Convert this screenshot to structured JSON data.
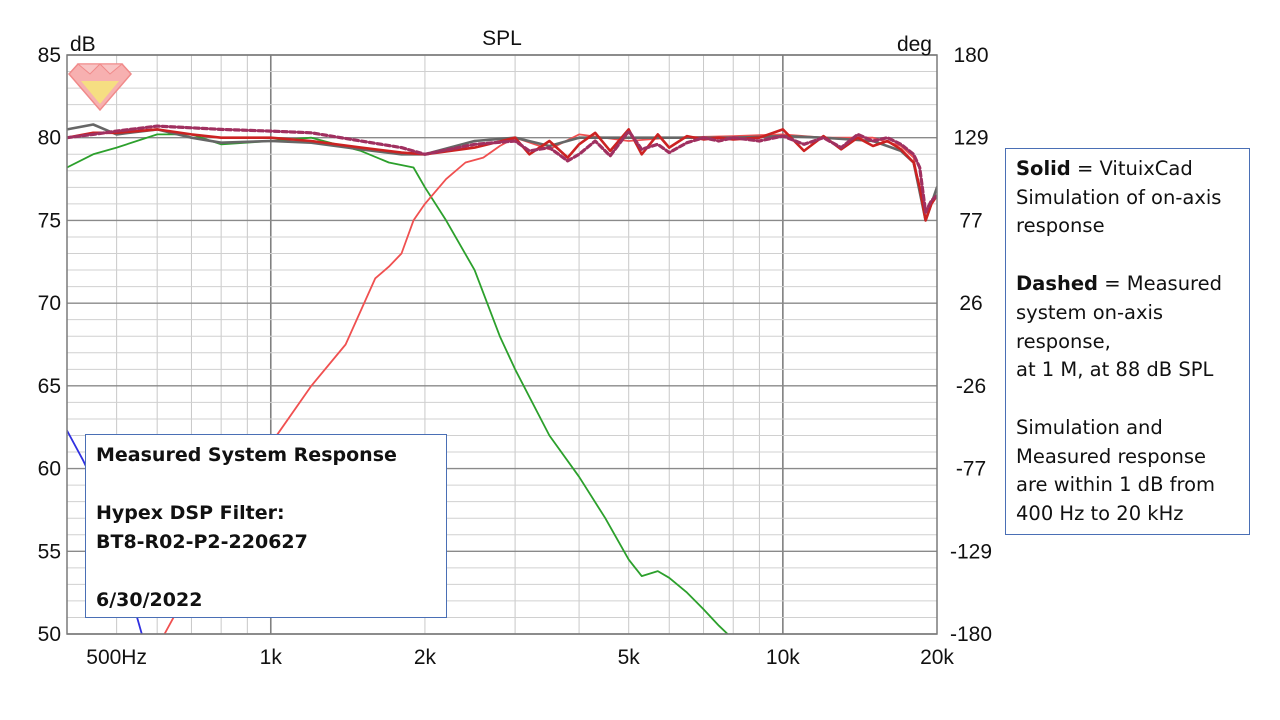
{
  "chart_data": {
    "type": "line",
    "title": "SPL",
    "ylabel_left": "dB",
    "ylabel_right": "deg",
    "x_scale": "log",
    "xlim": [
      400,
      20000
    ],
    "ylim": [
      50,
      85
    ],
    "y2lim": [
      -180,
      180
    ],
    "x_ticks": [
      {
        "value": 500,
        "label": "500Hz"
      },
      {
        "value": 1000,
        "label": "1k"
      },
      {
        "value": 2000,
        "label": "2k"
      },
      {
        "value": 5000,
        "label": "5k"
      },
      {
        "value": 10000,
        "label": "10k"
      },
      {
        "value": 20000,
        "label": "20k"
      }
    ],
    "y_ticks": [
      "85",
      "80",
      "75",
      "70",
      "65",
      "60",
      "55",
      "50"
    ],
    "y2_ticks": [
      "180",
      "129",
      "77",
      "26",
      "-26",
      "-77",
      "-129",
      "-180"
    ],
    "grid": true,
    "series": [
      {
        "color": "#2ca02c",
        "style": "solid",
        "x": [
          400,
          450,
          500,
          600,
          700,
          800,
          1000,
          1200,
          1500,
          1700,
          1900,
          2000,
          2200,
          2500,
          2800,
          3000,
          3500,
          4000,
          4500,
          5000,
          5300,
          5700,
          6000,
          6500,
          7000,
          7500,
          7800
        ],
        "y": [
          78.2,
          79.0,
          79.4,
          80.2,
          80.2,
          79.6,
          79.8,
          80.0,
          79.2,
          78.5,
          78.2,
          77.0,
          75.0,
          72.0,
          68.0,
          66.0,
          62.0,
          59.5,
          57.0,
          54.5,
          53.5,
          53.8,
          53.4,
          52.5,
          51.5,
          50.5,
          50.0
        ]
      },
      {
        "color": "#f05050",
        "style": "solid",
        "x": [
          620,
          700,
          800,
          900,
          1000,
          1200,
          1400,
          1600,
          1700,
          1800,
          1900,
          2000,
          2200,
          2400,
          2600,
          2800,
          3000,
          3500,
          4000,
          5000,
          6000,
          8000,
          10000,
          12000,
          15000,
          17000,
          18000,
          19000,
          20000
        ],
        "y": [
          50.0,
          53.0,
          56.0,
          59.0,
          61.5,
          65.0,
          67.5,
          71.5,
          72.2,
          73.0,
          75.0,
          76.0,
          77.5,
          78.5,
          78.8,
          79.5,
          80.0,
          79.3,
          80.2,
          79.8,
          80.0,
          80.1,
          80.2,
          80.0,
          80.0,
          79.5,
          78.8,
          75.0,
          77.0
        ]
      },
      {
        "color": "#3030e0",
        "style": "solid",
        "x": [
          400,
          430,
          470,
          520,
          560
        ],
        "y": [
          62.3,
          60.5,
          58.0,
          53.5,
          50.0
        ]
      },
      {
        "color": "#666666",
        "style": "solid",
        "x": [
          400,
          450,
          500,
          600,
          700,
          800,
          1000,
          1200,
          1500,
          1800,
          2000,
          2500,
          3000,
          3500,
          4000,
          5000,
          6000,
          8000,
          10000,
          12000,
          15000,
          17000,
          18000,
          19000,
          20000
        ],
        "y": [
          80.5,
          80.8,
          80.2,
          80.5,
          80.0,
          79.7,
          79.8,
          79.7,
          79.3,
          79.0,
          79.0,
          79.8,
          80.0,
          79.5,
          80.0,
          80.0,
          80.0,
          80.0,
          80.1,
          80.0,
          79.8,
          79.2,
          78.5,
          75.0,
          77.0
        ]
      },
      {
        "color": "#cc2222",
        "style": "solid",
        "x": [
          400,
          450,
          500,
          600,
          700,
          800,
          1000,
          1200,
          1500,
          1800,
          2000,
          2500,
          3000,
          3200,
          3500,
          3800,
          4000,
          4300,
          4600,
          5000,
          5300,
          5700,
          6000,
          6500,
          7000,
          7500,
          8000,
          9000,
          10000,
          11000,
          12000,
          13000,
          14000,
          15000,
          16000,
          17000,
          18000,
          18500,
          19000,
          19500,
          20000
        ],
        "y": [
          80.0,
          80.3,
          80.3,
          80.5,
          80.2,
          80.0,
          80.0,
          79.8,
          79.4,
          79.1,
          79.0,
          79.4,
          80.0,
          79.0,
          79.8,
          78.8,
          79.6,
          80.3,
          79.2,
          80.5,
          79.0,
          80.2,
          79.4,
          80.1,
          79.9,
          80.0,
          79.9,
          80.0,
          80.5,
          79.2,
          80.1,
          79.3,
          80.0,
          79.5,
          79.8,
          79.3,
          78.5,
          77.0,
          75.0,
          76.0,
          76.5
        ]
      },
      {
        "color": "#a03060",
        "style": "dashed",
        "x": [
          400,
          450,
          500,
          600,
          700,
          800,
          1000,
          1200,
          1500,
          1800,
          2000,
          2500,
          3000,
          3200,
          3500,
          3800,
          4000,
          4300,
          4600,
          5000,
          5300,
          5700,
          6000,
          6500,
          7000,
          7500,
          8000,
          9000,
          10000,
          11000,
          12000,
          13000,
          14000,
          15000,
          16000,
          17000,
          18000,
          18500,
          19000,
          19500,
          20000
        ],
        "y": [
          80.0,
          80.2,
          80.4,
          80.7,
          80.6,
          80.5,
          80.4,
          80.3,
          79.8,
          79.4,
          79.0,
          79.6,
          79.8,
          79.2,
          79.4,
          78.6,
          79.0,
          79.8,
          78.9,
          80.4,
          79.3,
          79.6,
          79.1,
          79.7,
          80.0,
          79.8,
          80.0,
          79.8,
          80.1,
          79.6,
          80.0,
          79.4,
          80.2,
          79.8,
          80.0,
          79.6,
          79.0,
          78.2,
          75.5,
          76.2,
          76.5
        ]
      }
    ]
  },
  "notes": {
    "left_box": {
      "line1": "Measured System Response",
      "line2": "Hypex DSP Filter:",
      "line3": "BT8-R02-P2-220627",
      "line4": "6/30/2022"
    },
    "right_box": {
      "solid_word": "Solid",
      "solid_text_1": " = VituixCad",
      "solid_text_2": "Simulation of on-axis",
      "solid_text_3": "response",
      "dashed_word": "Dashed",
      "dashed_text_1": " = Measured",
      "dashed_text_2": "system on-axis",
      "dashed_text_3": "response,",
      "dashed_text_4": "at 1 M, at 88 dB SPL",
      "summary_1": "Simulation and",
      "summary_2": "Measured response",
      "summary_3": "are within 1 dB from",
      "summary_4": "400 Hz to 20 kHz"
    }
  }
}
